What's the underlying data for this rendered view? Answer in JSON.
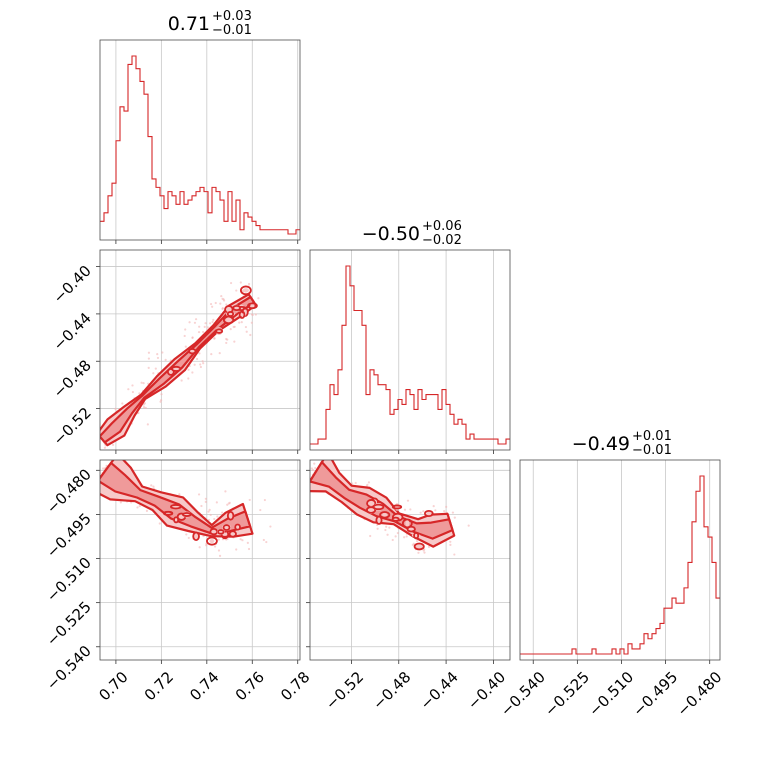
{
  "chart_data": {
    "type": "corner",
    "colors": {
      "primary": "#d62728",
      "fill_light": "#f7c9c9",
      "fill_mid": "#ef9a9a",
      "grid": "#c8c8c8"
    },
    "parameters": [
      {
        "title_value": "0.71",
        "title_plus": "+0.03",
        "title_minus": "−0.01",
        "range": [
          0.693,
          0.781
        ],
        "ticks": [
          0.7,
          0.72,
          0.74,
          0.76,
          0.78
        ],
        "tick_labels": [
          "0.70",
          "0.72",
          "0.74",
          "0.76",
          "0.78"
        ]
      },
      {
        "title_value": "−0.50",
        "title_plus": "+0.06",
        "title_minus": "−0.02",
        "range": [
          -0.555,
          -0.386
        ],
        "ticks": [
          -0.52,
          -0.48,
          -0.44,
          -0.4
        ],
        "tick_labels": [
          "−0.52",
          "−0.48",
          "−0.44",
          "−0.40"
        ]
      },
      {
        "title_value": "−0.49",
        "title_plus": "+0.01",
        "title_minus": "−0.01",
        "range": [
          -0.5445,
          -0.4765
        ],
        "ticks": [
          -0.54,
          -0.525,
          -0.51,
          -0.495,
          -0.48
        ],
        "tick_labels": [
          "−0.540",
          "−0.525",
          "−0.510",
          "−0.495",
          "−0.480"
        ]
      }
    ],
    "histograms": [
      {
        "param": 0,
        "bin_start": 0.693,
        "bin_width": 0.00176,
        "counts": [
          3,
          5,
          9,
          12,
          22,
          30,
          29,
          40,
          42,
          39,
          36,
          33,
          23,
          13,
          11,
          9,
          6,
          10,
          9,
          7,
          10,
          7,
          8,
          9,
          10,
          11,
          10,
          5,
          11,
          10,
          8,
          3,
          10,
          3,
          8,
          1,
          5,
          4,
          3,
          2,
          1,
          1,
          1,
          1,
          1,
          1,
          1,
          0,
          0,
          1
        ]
      },
      {
        "param": 1,
        "bin_start": -0.555,
        "bin_width": 0.00338,
        "counts": [
          0,
          0,
          1,
          1,
          7,
          12,
          10,
          15,
          24,
          36,
          32,
          27,
          27,
          24,
          10,
          15,
          14,
          12,
          12,
          11,
          6,
          7,
          9,
          8,
          11,
          10,
          7,
          11,
          9,
          10,
          10,
          10,
          7,
          11,
          8,
          6,
          4,
          5,
          4,
          1,
          2,
          1,
          1,
          1,
          1,
          1,
          1,
          0,
          0,
          1
        ]
      },
      {
        "param": 2,
        "bin_start": -0.5445,
        "bin_width": 0.00136,
        "counts": [
          0,
          0,
          0,
          0,
          0,
          0,
          0,
          0,
          0,
          0,
          0,
          0,
          0,
          1,
          0,
          0,
          0,
          0,
          1,
          0,
          0,
          0,
          0,
          1,
          0,
          1,
          0,
          2,
          1,
          1,
          2,
          4,
          3,
          4,
          5,
          6,
          9,
          9,
          11,
          10,
          10,
          13,
          18,
          26,
          32,
          35,
          25,
          23,
          18,
          11
        ]
      }
    ],
    "ridges_2d": [
      {
        "x_param": 0,
        "y_param": 1,
        "points": [
          [
            0.694,
            -0.546
          ],
          [
            0.7,
            -0.536
          ],
          [
            0.706,
            -0.522
          ],
          [
            0.712,
            -0.51
          ],
          [
            0.72,
            -0.497
          ],
          [
            0.728,
            -0.483
          ],
          [
            0.736,
            -0.467
          ],
          [
            0.744,
            -0.452
          ],
          [
            0.752,
            -0.438
          ],
          [
            0.76,
            -0.428
          ]
        ]
      },
      {
        "x_param": 0,
        "y_param": 2,
        "points": [
          [
            0.695,
            -0.4805
          ],
          [
            0.702,
            -0.4845
          ],
          [
            0.71,
            -0.488
          ],
          [
            0.718,
            -0.4905
          ],
          [
            0.726,
            -0.494
          ],
          [
            0.734,
            -0.4975
          ],
          [
            0.742,
            -0.5005
          ],
          [
            0.75,
            -0.4985
          ],
          [
            0.758,
            -0.4965
          ]
        ]
      },
      {
        "x_param": 1,
        "y_param": 2,
        "points": [
          [
            -0.55,
            -0.4805
          ],
          [
            -0.536,
            -0.484
          ],
          [
            -0.524,
            -0.488
          ],
          [
            -0.51,
            -0.4905
          ],
          [
            -0.496,
            -0.4935
          ],
          [
            -0.482,
            -0.4965
          ],
          [
            -0.466,
            -0.4995
          ],
          [
            -0.452,
            -0.5005
          ],
          [
            -0.436,
            -0.4985
          ]
        ]
      }
    ]
  }
}
